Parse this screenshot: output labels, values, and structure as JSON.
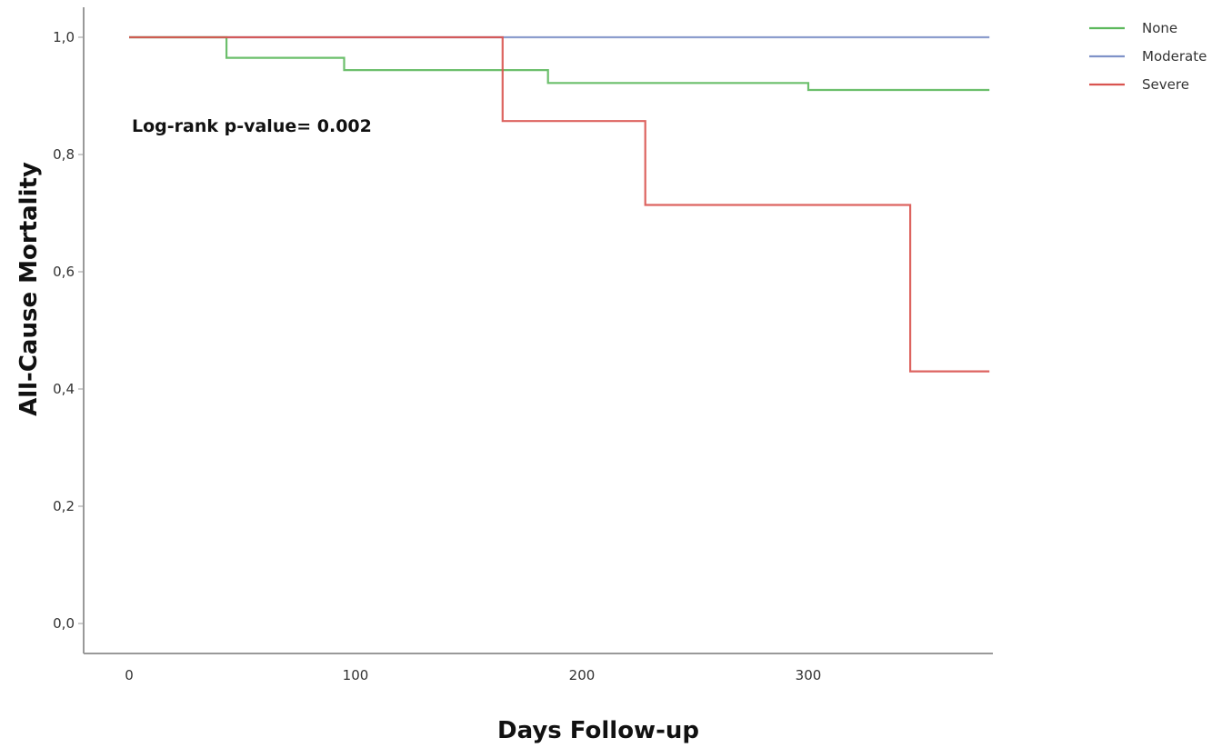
{
  "chart_data": {
    "type": "line",
    "xlabel": "Days Follow-up",
    "ylabel": "All-Cause Mortality",
    "xlim": [
      -20,
      380
    ],
    "ylim": [
      -0.05,
      1.06
    ],
    "x_ticks": [
      0,
      100,
      200,
      300
    ],
    "x_tick_labels": [
      "0",
      "100",
      "200",
      "300"
    ],
    "y_ticks": [
      0.0,
      0.2,
      0.4,
      0.6,
      0.8,
      1.0
    ],
    "y_tick_labels": [
      "0,0",
      "0,2",
      "0,4",
      "0,6",
      "0,8",
      "1,0"
    ],
    "grid": false,
    "legend_position": "top-right",
    "annotation": "Log-rank p-value= 0.002",
    "series": [
      {
        "name": "None",
        "color": "#5cb85c",
        "step": true,
        "x": [
          0,
          43,
          95,
          185,
          300,
          380
        ],
        "y": [
          1.0,
          0.965,
          0.944,
          0.922,
          0.91,
          0.91
        ]
      },
      {
        "name": "Moderate",
        "color": "#7f92c8",
        "step": true,
        "x": [
          0,
          380
        ],
        "y": [
          1.0,
          1.0
        ]
      },
      {
        "name": "Severe",
        "color": "#d9534f",
        "step": true,
        "x": [
          0,
          165,
          228,
          345,
          380
        ],
        "y": [
          1.0,
          0.857,
          0.714,
          0.43,
          0.43
        ]
      }
    ]
  }
}
